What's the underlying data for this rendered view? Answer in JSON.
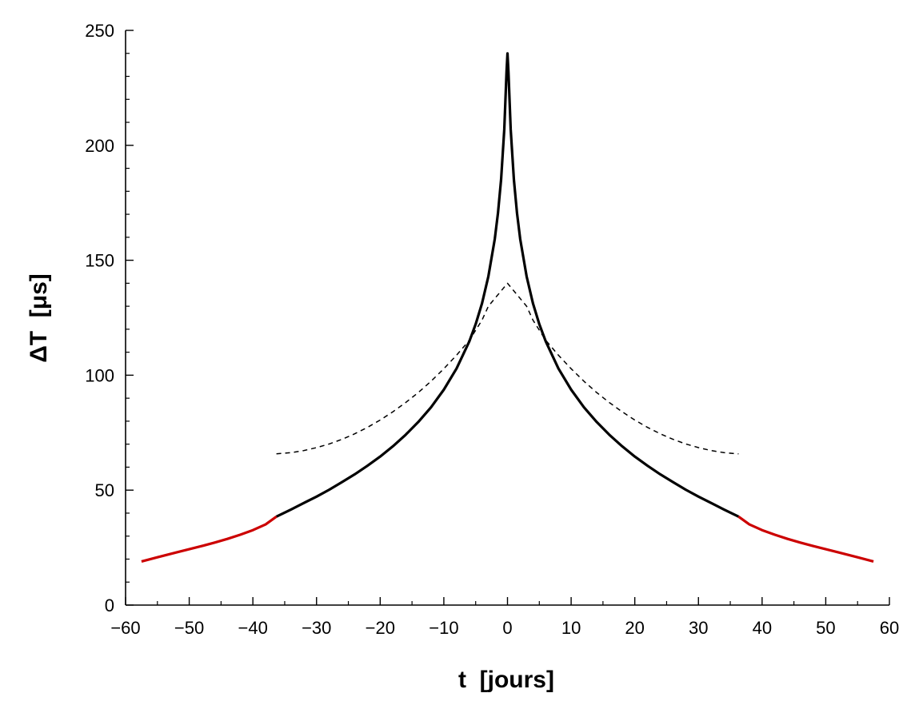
{
  "chart_data": {
    "type": "line",
    "title": "",
    "xlabel": "t  [jours]",
    "ylabel": "ΔT  [μs]",
    "xlim": [
      -60,
      60
    ],
    "ylim": [
      0,
      250
    ],
    "xticks": [
      -60,
      -50,
      -40,
      -30,
      -20,
      -10,
      0,
      10,
      20,
      30,
      40,
      50,
      60
    ],
    "xtick_labels": [
      "−60",
      "−50",
      "−40",
      "−30",
      "−20",
      "−10",
      "0",
      "10",
      "20",
      "30",
      "40",
      "50",
      "60"
    ],
    "yticks": [
      0,
      50,
      100,
      150,
      200,
      250
    ],
    "ytick_labels": [
      "0",
      "50",
      "100",
      "150",
      "200",
      "250"
    ],
    "x_minor_step": 5,
    "y_minor_step": 10,
    "grid": false,
    "colors": {
      "axis": "#000000",
      "main_curve": "#000000",
      "outer_curve": "#cc0000",
      "dashed_curve": "#000000"
    },
    "series": [
      {
        "name": "main",
        "style": "solid",
        "color": "#000000",
        "x": [
          -36.3,
          -34,
          -32,
          -30,
          -28,
          -26,
          -24,
          -22,
          -20,
          -18,
          -16,
          -14,
          -12,
          -10,
          -8,
          -6,
          -5,
          -4,
          -3,
          -2,
          -1.5,
          -1,
          -0.5,
          -0.15,
          0,
          0.15,
          0.5,
          1,
          1.5,
          2,
          3,
          4,
          5,
          6,
          8,
          10,
          12,
          14,
          16,
          18,
          20,
          22,
          24,
          26,
          28,
          30,
          32,
          34,
          36.3
        ],
        "y": [
          38.5,
          41.6,
          44.4,
          47.2,
          50.2,
          53.5,
          56.9,
          60.6,
          64.6,
          69.1,
          74.1,
          79.7,
          86.1,
          93.7,
          102.9,
          114.7,
          122.2,
          131.3,
          143.0,
          159.2,
          170.5,
          185.1,
          207.0,
          232.0,
          240.0,
          232.0,
          207.0,
          185.1,
          170.5,
          159.2,
          143.0,
          131.3,
          122.2,
          114.7,
          102.9,
          93.7,
          86.1,
          79.7,
          74.1,
          69.1,
          64.6,
          60.6,
          56.9,
          53.5,
          50.2,
          47.2,
          44.4,
          41.6,
          38.5
        ]
      },
      {
        "name": "outer-left",
        "style": "solid",
        "color": "#cc0000",
        "x": [
          -57.5,
          -55,
          -52,
          -50,
          -48,
          -46,
          -44,
          -42,
          -40,
          -38,
          -36.3
        ],
        "y": [
          19.0,
          20.8,
          22.9,
          24.3,
          25.7,
          27.2,
          28.8,
          30.6,
          32.6,
          35.1,
          38.5
        ]
      },
      {
        "name": "outer-right",
        "style": "solid",
        "color": "#cc0000",
        "x": [
          36.3,
          38,
          40,
          42,
          44,
          46,
          48,
          50,
          52,
          55,
          57.5
        ],
        "y": [
          38.5,
          35.1,
          32.6,
          30.6,
          28.8,
          27.2,
          25.7,
          24.3,
          22.9,
          20.8,
          19.0
        ]
      },
      {
        "name": "dashed-approx",
        "style": "dashed",
        "color": "#000000",
        "x": [
          -36.3,
          -34,
          -32,
          -30,
          -28,
          -26,
          -24,
          -22,
          -20,
          -18,
          -16,
          -14,
          -12,
          -10,
          -8,
          -6,
          -4,
          -3,
          0,
          3,
          4,
          6,
          8,
          10,
          12,
          14,
          16,
          18,
          20,
          22,
          24,
          26,
          28,
          30,
          32,
          34,
          36.3
        ],
        "y": [
          65.8,
          66.3,
          67.2,
          68.5,
          70.1,
          72.1,
          74.5,
          77.3,
          80.5,
          84.1,
          88.1,
          92.5,
          97.4,
          102.8,
          108.7,
          115.2,
          124.0,
          130.0,
          140.0,
          130.0,
          124.0,
          115.2,
          108.7,
          102.8,
          97.4,
          92.5,
          88.1,
          84.1,
          80.5,
          77.3,
          74.5,
          72.1,
          70.1,
          68.5,
          67.2,
          66.3,
          65.8
        ]
      }
    ]
  }
}
